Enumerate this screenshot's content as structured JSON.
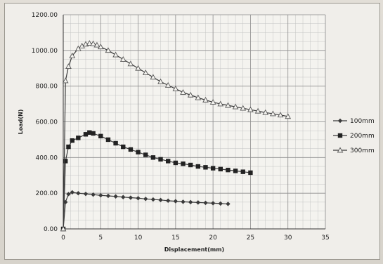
{
  "chart_data": {
    "type": "line",
    "title": "",
    "xlabel": "Displacement(mm)",
    "ylabel": "Load(N)",
    "xlim": [
      0,
      35
    ],
    "ylim": [
      0,
      1200
    ],
    "x_ticks": [
      "0",
      "5",
      "10",
      "15",
      "20",
      "25",
      "30",
      "35"
    ],
    "y_ticks": [
      "0.00",
      "200.00",
      "400.00",
      "600.00",
      "800.00",
      "1000.00",
      "1200.00"
    ],
    "grid": true,
    "legend_position": "right",
    "series": [
      {
        "name": "100mm",
        "marker": "diamond",
        "x": [
          0,
          0.3,
          0.7,
          1.2,
          2,
          3,
          4,
          5,
          6,
          7,
          8,
          9,
          10,
          11,
          12,
          13,
          14,
          15,
          16,
          17,
          18,
          19,
          20,
          21,
          22
        ],
        "y": [
          0,
          150,
          195,
          205,
          200,
          196,
          192,
          188,
          185,
          182,
          178,
          175,
          172,
          168,
          165,
          162,
          158,
          155,
          152,
          150,
          148,
          146,
          144,
          142,
          140
        ]
      },
      {
        "name": "200mm",
        "marker": "square",
        "x": [
          0,
          0.3,
          0.7,
          1.2,
          2,
          3,
          3.5,
          4,
          5,
          6,
          7,
          8,
          9,
          10,
          11,
          12,
          13,
          14,
          15,
          16,
          17,
          18,
          19,
          20,
          21,
          22,
          23,
          24,
          25
        ],
        "y": [
          0,
          380,
          460,
          495,
          510,
          530,
          540,
          535,
          520,
          500,
          480,
          460,
          445,
          430,
          415,
          400,
          390,
          380,
          370,
          365,
          358,
          350,
          345,
          340,
          335,
          330,
          325,
          320,
          315
        ]
      },
      {
        "name": "300mm",
        "marker": "triangle",
        "x": [
          0,
          0.3,
          0.7,
          1.2,
          2,
          2.5,
          3,
          3.5,
          4,
          4.5,
          5,
          6,
          7,
          8,
          9,
          10,
          11,
          12,
          13,
          14,
          15,
          16,
          17,
          18,
          19,
          20,
          21,
          22,
          23,
          24,
          25,
          26,
          27,
          28,
          29,
          30
        ],
        "y": [
          0,
          830,
          910,
          970,
          1010,
          1025,
          1035,
          1040,
          1038,
          1030,
          1020,
          1000,
          975,
          950,
          925,
          900,
          875,
          850,
          825,
          805,
          785,
          765,
          750,
          735,
          722,
          710,
          700,
          692,
          684,
          676,
          668,
          660,
          652,
          645,
          638,
          630
        ]
      }
    ],
    "colors": {
      "series": "#3a3a3a",
      "grid_major": "#8f8f8f",
      "grid_minor": "#c4c4c4"
    }
  }
}
